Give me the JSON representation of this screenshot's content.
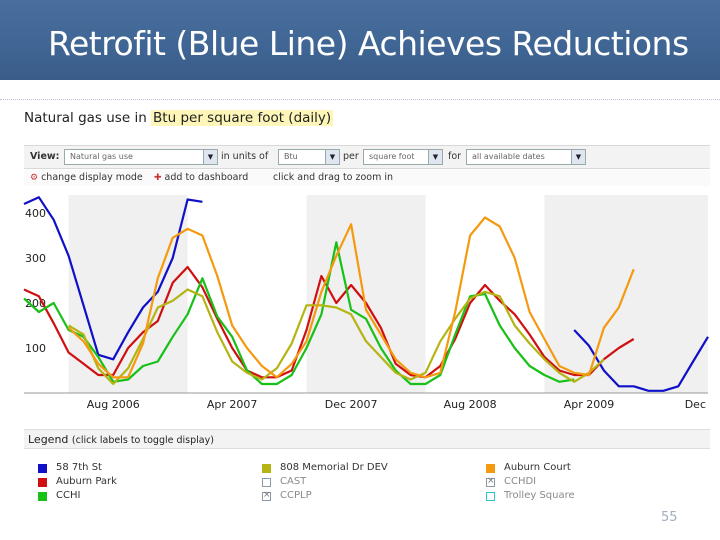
{
  "slide": {
    "title": "Retrofit (Blue Line) Achieves Reductions",
    "page_number": "55"
  },
  "panel": {
    "heading_prefix": "Natural gas use in ",
    "heading_highlight": "Btu per square foot (daily)"
  },
  "toolbar": {
    "view_label": "View:",
    "view_value": "Natural gas use",
    "units_label": "in units of",
    "units_value": "Btu",
    "per_label": "per",
    "per_value": "square foot",
    "for_label": "for",
    "for_value": "all available dates"
  },
  "actions": {
    "change_mode": "change display mode",
    "add_dashboard": "add to dashboard",
    "zoom_hint": "click and drag to zoom in"
  },
  "legend": {
    "title": "Legend",
    "hint": "(click labels to toggle display)",
    "items": [
      {
        "label": "58 7th St",
        "color": "#1010c8",
        "active": true
      },
      {
        "label": "Auburn Park",
        "color": "#d01010",
        "active": true
      },
      {
        "label": "CCHI",
        "color": "#18c018",
        "active": true
      },
      {
        "label": "808 Memorial Dr DEV",
        "color": "#b4b414",
        "active": true
      },
      {
        "label": "CAST",
        "color": "#8898b0",
        "active": false
      },
      {
        "label": "CCPLP",
        "color": "#8898b0",
        "active": false
      },
      {
        "label": "Auburn Court",
        "color": "#f49a10",
        "active": true
      },
      {
        "label": "CCHDI",
        "color": "#8898b0",
        "active": false
      },
      {
        "label": "Trolley Square",
        "color": "#26c6c6",
        "active": false
      }
    ]
  },
  "chart_data": {
    "type": "line",
    "title": "Natural gas use in Btu per square foot (daily)",
    "ylim": [
      0,
      440
    ],
    "y_ticks": [
      100,
      200,
      300,
      400
    ],
    "x_ticks": [
      "Aug 2006",
      "Apr 2007",
      "Dec 2007",
      "Aug 2008",
      "Apr 2009",
      "Dec"
    ],
    "xlim": [
      "2006-02",
      "2009-12"
    ],
    "series": [
      {
        "name": "58 7th St",
        "color": "#1010c8",
        "segments": [
          [
            [
              "2006-02",
              420
            ],
            [
              "2006-03",
              435
            ],
            [
              "2006-04",
              385
            ],
            [
              "2006-05",
              305
            ],
            [
              "2006-06",
              195
            ],
            [
              "2006-07",
              85
            ],
            [
              "2006-08",
              75
            ],
            [
              "2006-09",
              135
            ],
            [
              "2006-10",
              190
            ],
            [
              "2006-11",
              225
            ],
            [
              "2006-12",
              300
            ],
            [
              "2007-01",
              430
            ],
            [
              "2007-02",
              425
            ]
          ],
          [
            [
              "2009-03",
              140
            ],
            [
              "2009-04",
              105
            ],
            [
              "2009-05",
              50
            ],
            [
              "2009-06",
              15
            ],
            [
              "2009-07",
              15
            ],
            [
              "2009-08",
              5
            ],
            [
              "2009-09",
              5
            ],
            [
              "2009-10",
              15
            ],
            [
              "2009-11",
              70
            ],
            [
              "2009-12",
              125
            ]
          ]
        ]
      },
      {
        "name": "Auburn Park",
        "color": "#d01010",
        "segments": [
          [
            [
              "2006-02",
              230
            ],
            [
              "2006-03",
              215
            ],
            [
              "2006-04",
              155
            ],
            [
              "2006-05",
              90
            ],
            [
              "2006-06",
              65
            ],
            [
              "2006-07",
              40
            ],
            [
              "2006-08",
              40
            ],
            [
              "2006-09",
              100
            ],
            [
              "2006-10",
              135
            ],
            [
              "2006-11",
              160
            ],
            [
              "2006-12",
              245
            ],
            [
              "2007-01",
              280
            ],
            [
              "2007-02",
              235
            ],
            [
              "2007-03",
              165
            ],
            [
              "2007-04",
              100
            ],
            [
              "2007-05",
              50
            ],
            [
              "2007-06",
              35
            ],
            [
              "2007-07",
              35
            ],
            [
              "2007-08",
              50
            ],
            [
              "2007-09",
              140
            ],
            [
              "2007-10",
              260
            ],
            [
              "2007-11",
              200
            ],
            [
              "2007-12",
              240
            ],
            [
              "2008-01",
              200
            ],
            [
              "2008-02",
              145
            ],
            [
              "2008-03",
              65
            ],
            [
              "2008-04",
              40
            ],
            [
              "2008-05",
              35
            ],
            [
              "2008-06",
              60
            ],
            [
              "2008-07",
              120
            ],
            [
              "2008-08",
              200
            ],
            [
              "2008-09",
              240
            ],
            [
              "2008-10",
              205
            ],
            [
              "2008-11",
              175
            ],
            [
              "2008-12",
              130
            ],
            [
              "2009-01",
              80
            ],
            [
              "2009-02",
              50
            ],
            [
              "2009-03",
              40
            ],
            [
              "2009-04",
              40
            ],
            [
              "2009-05",
              75
            ],
            [
              "2009-06",
              100
            ],
            [
              "2009-07",
              120
            ]
          ]
        ]
      },
      {
        "name": "CCHI",
        "color": "#18c018",
        "segments": [
          [
            [
              "2006-02",
              210
            ],
            [
              "2006-03",
              180
            ],
            [
              "2006-04",
              200
            ],
            [
              "2006-05",
              140
            ],
            [
              "2006-06",
              125
            ],
            [
              "2006-07",
              80
            ],
            [
              "2006-08",
              25
            ],
            [
              "2006-09",
              30
            ],
            [
              "2006-10",
              60
            ],
            [
              "2006-11",
              70
            ],
            [
              "2006-12",
              125
            ],
            [
              "2007-01",
              175
            ],
            [
              "2007-02",
              255
            ],
            [
              "2007-03",
              170
            ],
            [
              "2007-04",
              125
            ],
            [
              "2007-05",
              50
            ],
            [
              "2007-06",
              20
            ],
            [
              "2007-07",
              20
            ],
            [
              "2007-08",
              40
            ],
            [
              "2007-09",
              100
            ],
            [
              "2007-10",
              175
            ],
            [
              "2007-11",
              335
            ],
            [
              "2007-12",
              185
            ],
            [
              "2008-01",
              165
            ],
            [
              "2008-02",
              100
            ],
            [
              "2008-03",
              50
            ],
            [
              "2008-04",
              20
            ],
            [
              "2008-05",
              20
            ],
            [
              "2008-06",
              40
            ],
            [
              "2008-07",
              130
            ],
            [
              "2008-08",
              215
            ],
            [
              "2008-09",
              220
            ],
            [
              "2008-10",
              150
            ],
            [
              "2008-11",
              100
            ],
            [
              "2008-12",
              60
            ],
            [
              "2009-01",
              40
            ],
            [
              "2009-02",
              25
            ],
            [
              "2009-03",
              30
            ]
          ]
        ]
      },
      {
        "name": "808 Memorial Dr DEV",
        "color": "#b4b414",
        "segments": [
          [
            [
              "2006-05",
              150
            ],
            [
              "2006-06",
              130
            ],
            [
              "2006-07",
              55
            ],
            [
              "2006-08",
              20
            ],
            [
              "2006-09",
              55
            ],
            [
              "2006-10",
              120
            ],
            [
              "2006-11",
              190
            ],
            [
              "2006-12",
              205
            ],
            [
              "2007-01",
              230
            ],
            [
              "2007-02",
              215
            ],
            [
              "2007-03",
              135
            ],
            [
              "2007-04",
              70
            ],
            [
              "2007-05",
              45
            ],
            [
              "2007-06",
              30
            ],
            [
              "2007-07",
              55
            ],
            [
              "2007-08",
              110
            ],
            [
              "2007-09",
              195
            ],
            [
              "2007-10",
              195
            ],
            [
              "2007-11",
              190
            ],
            [
              "2007-12",
              175
            ],
            [
              "2008-01",
              115
            ],
            [
              "2008-02",
              80
            ],
            [
              "2008-03",
              45
            ],
            [
              "2008-04",
              30
            ],
            [
              "2008-05",
              45
            ],
            [
              "2008-06",
              115
            ],
            [
              "2008-07",
              165
            ],
            [
              "2008-08",
              210
            ],
            [
              "2008-09",
              225
            ],
            [
              "2008-10",
              215
            ],
            [
              "2008-11",
              150
            ],
            [
              "2008-12",
              110
            ],
            [
              "2009-01",
              75
            ],
            [
              "2009-02",
              45
            ],
            [
              "2009-03",
              25
            ],
            [
              "2009-04",
              45
            ],
            [
              "2009-05",
              75
            ]
          ]
        ]
      },
      {
        "name": "Auburn Court",
        "color": "#f49a10",
        "segments": [
          [
            [
              "2006-05",
              145
            ],
            [
              "2006-06",
              115
            ],
            [
              "2006-07",
              65
            ],
            [
              "2006-08",
              35
            ],
            [
              "2006-09",
              35
            ],
            [
              "2006-10",
              110
            ],
            [
              "2006-11",
              255
            ],
            [
              "2006-12",
              345
            ],
            [
              "2007-01",
              365
            ],
            [
              "2007-02",
              350
            ],
            [
              "2007-03",
              260
            ],
            [
              "2007-04",
              150
            ],
            [
              "2007-05",
              100
            ],
            [
              "2007-06",
              60
            ],
            [
              "2007-07",
              35
            ],
            [
              "2007-08",
              65
            ],
            [
              "2007-09",
              115
            ],
            [
              "2007-10",
              225
            ],
            [
              "2007-11",
              305
            ],
            [
              "2007-12",
              375
            ],
            [
              "2008-01",
              185
            ],
            [
              "2008-02",
              130
            ],
            [
              "2008-03",
              75
            ],
            [
              "2008-04",
              45
            ],
            [
              "2008-05",
              35
            ],
            [
              "2008-06",
              45
            ],
            [
              "2008-07",
              180
            ],
            [
              "2008-08",
              350
            ],
            [
              "2008-09",
              390
            ],
            [
              "2008-10",
              370
            ],
            [
              "2008-11",
              300
            ],
            [
              "2008-12",
              180
            ],
            [
              "2009-01",
              120
            ],
            [
              "2009-02",
              60
            ],
            [
              "2009-03",
              45
            ],
            [
              "2009-04",
              40
            ],
            [
              "2009-05",
              145
            ],
            [
              "2009-06",
              190
            ],
            [
              "2009-07",
              275
            ]
          ]
        ]
      }
    ],
    "grid": false,
    "legend_position": "bottom"
  }
}
